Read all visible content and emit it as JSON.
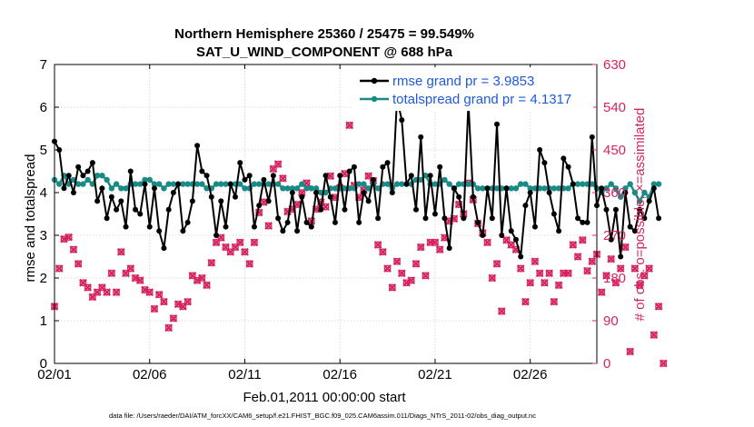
{
  "chart_data": {
    "type": "line",
    "title_line1": "Northern Hemisphere 25360 / 25475 = 99.549%",
    "title_line2": "SAT_U_WIND_COMPONENT @ 688 hPa",
    "xlabel": "Feb.01,2011 00:00:00 start",
    "ylabel_left": "rmse and totalspread",
    "ylabel_right": "# of obs: o=possible; ×=assimilated",
    "footer": "data file: /Users/raeder/DAI/ATM_forcXX/CAM6_setup/f.e21.FHIST_BGC.f09_025.CAM6assim.011/Diags_NTrS_2011-02/obs_diag_output.nc",
    "xlim": [
      0,
      28.5
    ],
    "ylim_left": [
      0,
      7
    ],
    "ylim_right": [
      0,
      630
    ],
    "x_ticks": [
      0,
      5,
      10,
      15,
      20,
      25
    ],
    "x_tick_labels": [
      "02/01",
      "02/06",
      "02/11",
      "02/16",
      "02/21",
      "02/26"
    ],
    "y_left_ticks": [
      "0",
      "1",
      "2",
      "3",
      "4",
      "5",
      "6",
      "7"
    ],
    "y_right_ticks": [
      "0",
      "90",
      "180",
      "270",
      "360",
      "450",
      "540",
      "630"
    ],
    "grid": true,
    "legend_position": "top-right",
    "colors": {
      "rmse": "#000000",
      "spread": "#1a8a86",
      "obs": "#d6245f",
      "right_axis": "#d6245f",
      "legend_text": "#1f5bd6"
    },
    "series": [
      {
        "name": "rmse grand pr = 3.9853",
        "axis": "left",
        "values": [
          5.2,
          5.0,
          4.1,
          4.4,
          4.0,
          4.6,
          4.4,
          4.5,
          4.7,
          3.8,
          4.1,
          3.4,
          3.9,
          3.6,
          3.8,
          3.2,
          4.5,
          3.6,
          3.5,
          4.2,
          3.2,
          4.1,
          3.1,
          2.7,
          3.6,
          4.0,
          4.2,
          3.1,
          3.3,
          3.8,
          5.1,
          4.5,
          4.4,
          3.9,
          3.0,
          3.8,
          3.2,
          4.2,
          3.9,
          4.7,
          4.3,
          4.4,
          3.2,
          3.7,
          4.3,
          3.8,
          4.4,
          3.4,
          3.1,
          3.3,
          4.0,
          3.1,
          3.9,
          3.3,
          3.2,
          4.0,
          3.6,
          4.4,
          3.9,
          3.3,
          4.4,
          3.6,
          4.5,
          4.6,
          3.3,
          4.0,
          3.8,
          4.3,
          3.4,
          4.6,
          4.7,
          4.0,
          6.2,
          5.7,
          4.2,
          4.4,
          3.6,
          5.3,
          3.4,
          4.4,
          3.5,
          4.6,
          3.4,
          2.7,
          4.1,
          3.9,
          3.4,
          6.1,
          3.9,
          3.3,
          3.0,
          4.1,
          3.4,
          5.6,
          3.0,
          4.1,
          3.1,
          2.9,
          2.5,
          3.7,
          4.0,
          3.2,
          5.0,
          4.7,
          4.0,
          3.5,
          3.1,
          4.8,
          4.6,
          4.2,
          3.4,
          3.3,
          3.3,
          5.3,
          3.7,
          4.1,
          3.6,
          2.9,
          3.6,
          2.5,
          4.0,
          3.2,
          3.1,
          3.6,
          3.4,
          3.8,
          4.1,
          3.4
        ]
      },
      {
        "name": "totalspread grand pr = 4.1317",
        "axis": "left",
        "values": [
          4.3,
          4.2,
          4.4,
          4.2,
          4.3,
          4.2,
          4.2,
          4.3,
          4.2,
          4.4,
          4.4,
          4.3,
          4.1,
          4.2,
          4.1,
          4.1,
          4.2,
          4.2,
          4.2,
          4.3,
          4.3,
          4.2,
          4.2,
          4.1,
          4.2,
          4.2,
          4.2,
          4.2,
          4.2,
          4.2,
          4.2,
          4.2,
          4.1,
          4.1,
          4.2,
          4.2,
          4.2,
          4.2,
          4.2,
          4.2,
          4.1,
          4.1,
          4.2,
          4.2,
          4.2,
          4.2,
          4.2,
          4.2,
          4.1,
          4.1,
          4.1,
          4.1,
          4.2,
          4.1,
          4.1,
          4.1,
          4.0,
          4.0,
          4.1,
          4.1,
          4.1,
          4.1,
          4.1,
          4.1,
          4.2,
          4.2,
          4.1,
          4.2,
          4.1,
          4.2,
          4.2,
          4.1,
          4.2,
          4.2,
          4.2,
          4.2,
          4.3,
          4.3,
          4.4,
          4.2,
          4.2,
          4.2,
          4.3,
          4.2,
          4.1,
          4.2,
          4.2,
          4.2,
          4.2,
          4.1,
          4.1,
          4.1,
          4.1,
          4.1,
          4.1,
          4.1,
          4.1,
          4.1,
          4.2,
          4.2,
          4.1,
          4.1,
          4.1,
          4.1,
          4.1,
          4.1,
          4.1,
          4.1,
          4.1,
          4.2,
          4.2,
          4.2,
          4.2,
          4.2,
          4.1,
          4.0,
          4.1,
          4.2,
          4.1,
          3.9,
          4.1,
          4.2,
          4.0,
          3.8,
          4.0,
          3.9,
          4.2,
          4.2
        ]
      },
      {
        "name": "obs possible",
        "axis": "right",
        "marker": "o",
        "values": [
          120,
          200,
          262,
          266,
          240,
          210,
          170,
          160,
          140,
          150,
          160,
          150,
          190,
          150,
          235,
          190,
          200,
          180,
          175,
          155,
          150,
          115,
          145,
          130,
          75,
          95,
          125,
          120,
          130,
          185,
          175,
          180,
          165,
          212,
          255,
          265,
          245,
          235,
          245,
          255,
          235,
          210,
          255,
          318,
          340,
          290,
          410,
          420,
          390,
          320,
          325,
          335,
          360,
          380,
          300,
          325,
          340,
          330,
          395,
          350,
          370,
          400,
          502,
          375,
          350,
          365,
          395,
          385,
          250,
          235,
          200,
          160,
          215,
          190,
          170,
          175,
          210,
          245,
          185,
          255,
          255,
          240,
          265,
          300,
          305,
          335,
          315,
          380,
          345,
          295,
          275,
          255,
          180,
          210,
          110,
          260,
          250,
          240,
          200,
          130,
          170,
          215,
          190,
          170,
          190,
          130,
          165,
          190,
          190,
          250,
          225,
          260,
          195,
          215,
          230,
          150,
          185,
          220,
          170,
          200,
          245,
          25,
          200,
          165,
          185,
          200,
          60,
          120,
          0
        ]
      },
      {
        "name": "obs assimilated",
        "axis": "right",
        "marker": "x",
        "values": [
          120,
          200,
          262,
          266,
          240,
          210,
          170,
          160,
          140,
          150,
          160,
          150,
          190,
          150,
          235,
          190,
          200,
          180,
          175,
          155,
          150,
          115,
          145,
          130,
          75,
          95,
          125,
          120,
          130,
          185,
          175,
          180,
          165,
          212,
          255,
          265,
          245,
          235,
          245,
          255,
          235,
          210,
          255,
          318,
          340,
          290,
          410,
          420,
          390,
          320,
          325,
          335,
          360,
          380,
          300,
          325,
          340,
          330,
          395,
          350,
          370,
          400,
          502,
          375,
          350,
          365,
          395,
          385,
          250,
          235,
          200,
          160,
          215,
          190,
          170,
          175,
          210,
          245,
          185,
          255,
          255,
          240,
          265,
          300,
          305,
          335,
          315,
          380,
          345,
          295,
          275,
          255,
          180,
          210,
          110,
          260,
          250,
          240,
          200,
          130,
          170,
          215,
          190,
          170,
          190,
          130,
          165,
          190,
          190,
          250,
          225,
          260,
          195,
          215,
          230,
          150,
          185,
          220,
          170,
          200,
          245,
          25,
          200,
          165,
          185,
          200,
          60,
          120,
          0
        ]
      }
    ]
  }
}
